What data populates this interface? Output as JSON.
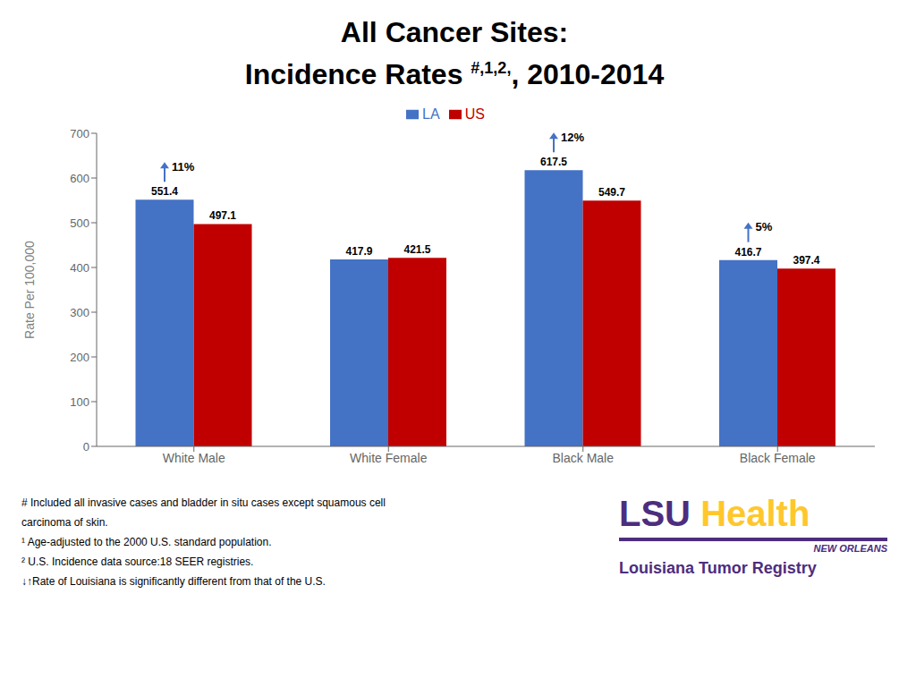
{
  "chart_data": {
    "type": "bar",
    "title": "All Cancer Sites:",
    "subtitle": [
      "Incidence Rates ",
      "#,1,2,",
      ", 2010-2014"
    ],
    "categories": [
      "White Male",
      "White Female",
      "Black Male",
      "Black Female"
    ],
    "series": [
      {
        "name": "LA",
        "color": "#4472C4",
        "values": [
          551.4,
          417.9,
          617.5,
          416.7
        ]
      },
      {
        "name": "US",
        "color": "#C00000",
        "values": [
          497.1,
          421.5,
          549.7,
          397.4
        ]
      }
    ],
    "ylabel": "Rate Per 100,000",
    "ylim": [
      0,
      700
    ],
    "yticks": [
      0,
      100,
      200,
      300,
      400,
      500,
      600,
      700
    ],
    "grid": false,
    "legend": "top",
    "data_labels": true,
    "annotations": [
      {
        "category": "White Male",
        "series": "LA",
        "text": "11%",
        "color": "#4472C4"
      },
      {
        "category": "Black Male",
        "series": "LA",
        "text": "12%",
        "color": "#4472C4"
      },
      {
        "category": "Black Female",
        "series": "LA",
        "text": "5%",
        "color": "#4472C4"
      }
    ],
    "footnotes": [
      "# Included all invasive cases and bladder in situ cases except squamous cell",
      "carcinoma of skin.",
      "¹ Age-adjusted to the 2000 U.S. standard population.",
      "² U.S. Incidence data source:18 SEER registries.",
      "↓↑Rate of Louisiana is significantly different from that of the U.S."
    ],
    "logo": [
      {
        "text": "LSU",
        "color": "#4D2D7E"
      },
      {
        "text": "Health",
        "color": "#FFC72C"
      },
      {
        "text": "NEW ORLEANS",
        "color": "#4D2D7E"
      },
      {
        "text": "Louisiana Tumor Registry",
        "color": "#4D2D7E"
      }
    ]
  }
}
